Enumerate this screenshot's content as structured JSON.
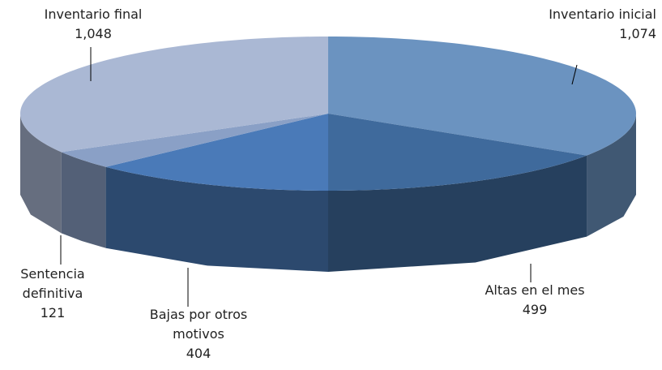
{
  "chart_data": {
    "type": "pie3d",
    "categories": [
      "Inventario inicial",
      "Altas en el mes",
      "Bajas por otros motivos",
      "Sentencia definitiva",
      "Inventario final"
    ],
    "values": [
      1074,
      499,
      404,
      121,
      1048
    ],
    "value_labels": [
      "1,074",
      "499",
      "404",
      "121",
      "1,048"
    ],
    "colors": [
      "#6b93c0",
      "#3f6a9c",
      "#4a7ab8",
      "#8aa0c6",
      "#aab8d4"
    ]
  }
}
